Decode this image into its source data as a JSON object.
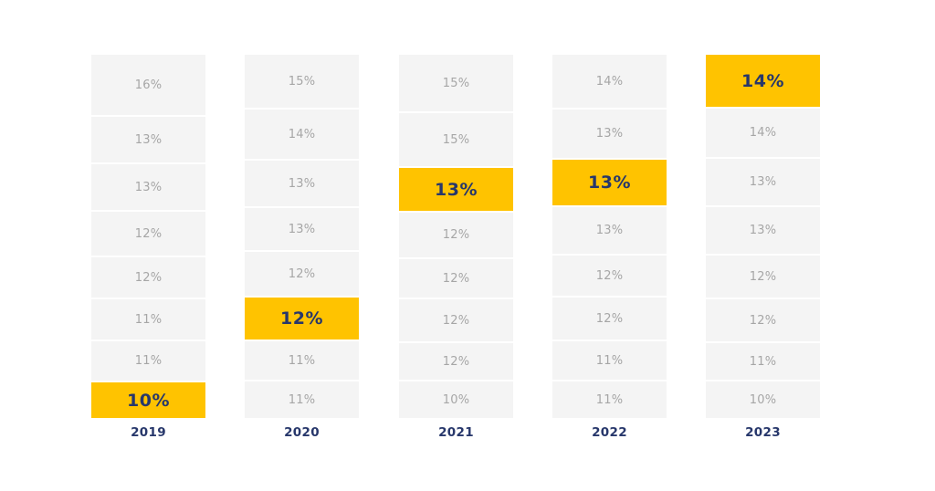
{
  "chart_data": {
    "type": "table",
    "title": "",
    "colors": {
      "cell": "#f4f4f4",
      "highlight": "#ffc300",
      "highlight_text": "#27376b",
      "text": "#a6a6a6",
      "year_text": "#27376b"
    },
    "columns": [
      {
        "year": "2019",
        "highlight_index": 7,
        "values": [
          "16%",
          "13%",
          "13%",
          "12%",
          "12%",
          "11%",
          "11%",
          "10%"
        ]
      },
      {
        "year": "2020",
        "highlight_index": 5,
        "values": [
          "15%",
          "14%",
          "13%",
          "13%",
          "12%",
          "12%",
          "11%",
          "11%"
        ]
      },
      {
        "year": "2021",
        "highlight_index": 2,
        "values": [
          "15%",
          "15%",
          "13%",
          "12%",
          "12%",
          "12%",
          "12%",
          "10%"
        ]
      },
      {
        "year": "2022",
        "highlight_index": 2,
        "values": [
          "14%",
          "13%",
          "13%",
          "13%",
          "12%",
          "12%",
          "11%",
          "11%"
        ]
      },
      {
        "year": "2023",
        "highlight_index": 0,
        "values": [
          "14%",
          "14%",
          "13%",
          "13%",
          "12%",
          "12%",
          "11%",
          "10%"
        ]
      }
    ]
  }
}
